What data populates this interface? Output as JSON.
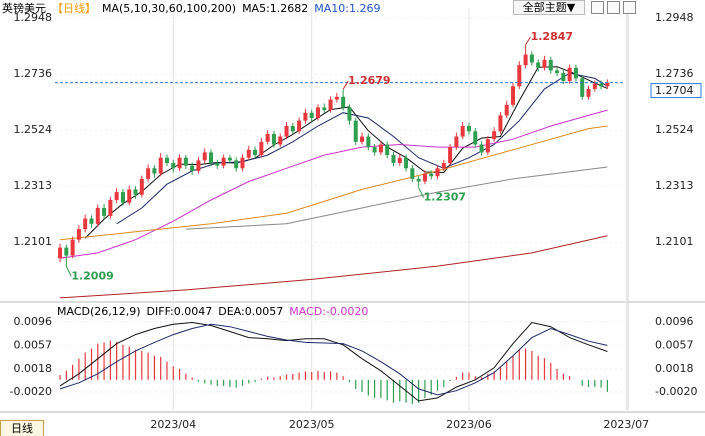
{
  "header": {
    "symbol": "英镑美元",
    "period": "【日线】",
    "ma_params": "MA(5,10,30,60,100,200)",
    "ma5": "MA5:1.2682",
    "ma10": "MA10:1.269",
    "theme": "全部主题▼"
  },
  "macd_header": {
    "params": "MACD(26,12,9)",
    "diff": "DIFF:0.0047",
    "dea": "DEA:0.0057",
    "macd": "MACD:-0.0020"
  },
  "footer": {
    "period_button": "日线"
  },
  "chart_data": [
    {
      "type": "candlestick",
      "xlim": [
        -0.8,
        89.8
      ],
      "xticks": [
        {
          "value": 18,
          "label": "2023/04"
        },
        {
          "value": 40,
          "label": "2023/05"
        },
        {
          "value": 65,
          "label": "2023/06"
        },
        {
          "value": 90,
          "label": "2023/07"
        }
      ],
      "ylim": [
        1.1882,
        1.2986
      ],
      "yticks": [
        1.2948,
        1.2736,
        1.2524,
        1.2313,
        1.2101
      ],
      "up_color": "#e8383d",
      "down_color": "#2e9e4f",
      "open": [
        1.204,
        1.208,
        1.205,
        1.211,
        1.215,
        1.219,
        1.217,
        1.223,
        1.22,
        1.226,
        1.229,
        1.225,
        1.23,
        1.228,
        1.234,
        1.238,
        1.236,
        1.242,
        1.24,
        1.238,
        1.242,
        1.239,
        1.237,
        1.241,
        1.244,
        1.24,
        1.239,
        1.242,
        1.241,
        1.238,
        1.242,
        1.245,
        1.243,
        1.248,
        1.251,
        1.247,
        1.25,
        1.254,
        1.252,
        1.256,
        1.259,
        1.257,
        1.261,
        1.26,
        1.264,
        1.265,
        1.261,
        1.256,
        1.248,
        1.25,
        1.246,
        1.244,
        1.247,
        1.243,
        1.24,
        1.242,
        1.238,
        1.234,
        1.233,
        1.236,
        1.235,
        1.238,
        1.24,
        1.246,
        1.25,
        1.254,
        1.252,
        1.247,
        1.244,
        1.249,
        1.252,
        1.258,
        1.262,
        1.269,
        1.277,
        1.281,
        1.278,
        1.276,
        1.279,
        1.275,
        1.274,
        1.271,
        1.276,
        1.272,
        1.265,
        1.268,
        1.27,
        1.269
      ],
      "high": [
        1.2095,
        1.2092,
        1.2122,
        1.2165,
        1.2205,
        1.2202,
        1.2243,
        1.2245,
        1.2272,
        1.2305,
        1.2302,
        1.2315,
        1.2312,
        1.2352,
        1.2395,
        1.2392,
        1.2438,
        1.2432,
        1.2412,
        1.2433,
        1.243,
        1.2402,
        1.2422,
        1.2455,
        1.2452,
        1.2412,
        1.2432,
        1.243,
        1.2422,
        1.2433,
        1.2465,
        1.2462,
        1.2495,
        1.2525,
        1.2522,
        1.2512,
        1.2555,
        1.2552,
        1.2572,
        1.2605,
        1.2602,
        1.2622,
        1.2625,
        1.2652,
        1.2665,
        1.2679,
        1.2622,
        1.2572,
        1.2515,
        1.2512,
        1.2472,
        1.2482,
        1.2482,
        1.2442,
        1.2432,
        1.2432,
        1.2392,
        1.2352,
        1.2372,
        1.2372,
        1.2392,
        1.2412,
        1.2472,
        1.2515,
        1.2555,
        1.2552,
        1.2532,
        1.2482,
        1.2502,
        1.2535,
        1.2592,
        1.2635,
        1.2702,
        1.2785,
        1.2847,
        1.2822,
        1.2792,
        1.2805,
        1.2802,
        1.2762,
        1.2752,
        1.2772,
        1.2772,
        1.2732,
        1.2692,
        1.2712,
        1.2712,
        1.2716
      ],
      "low": [
        1.2025,
        1.2009,
        1.204,
        1.2098,
        1.2138,
        1.2155,
        1.216,
        1.2188,
        1.219,
        1.2248,
        1.2238,
        1.224,
        1.2265,
        1.227,
        1.2328,
        1.2345,
        1.235,
        1.2388,
        1.2365,
        1.237,
        1.2378,
        1.2355,
        1.236,
        1.2398,
        1.2388,
        1.2378,
        1.238,
        1.2398,
        1.2368,
        1.237,
        1.241,
        1.2418,
        1.242,
        1.247,
        1.2458,
        1.246,
        1.249,
        1.2508,
        1.251,
        1.2548,
        1.2558,
        1.256,
        1.2588,
        1.259,
        1.2628,
        1.2598,
        1.2545,
        1.2468,
        1.247,
        1.2448,
        1.2428,
        1.243,
        1.2418,
        1.2388,
        1.239,
        1.2368,
        1.2328,
        1.2307,
        1.232,
        1.2338,
        1.234,
        1.237,
        1.239,
        1.245,
        1.249,
        1.2508,
        1.2458,
        1.2428,
        1.243,
        1.248,
        1.251,
        1.257,
        1.261,
        1.268,
        1.2758,
        1.2768,
        1.2745,
        1.275,
        1.2738,
        1.2728,
        1.2698,
        1.27,
        1.2708,
        1.2638,
        1.264,
        1.267,
        1.2678,
        1.268
      ],
      "close": [
        1.208,
        1.205,
        1.211,
        1.215,
        1.219,
        1.217,
        1.223,
        1.22,
        1.226,
        1.229,
        1.225,
        1.23,
        1.228,
        1.234,
        1.238,
        1.236,
        1.242,
        1.24,
        1.238,
        1.242,
        1.239,
        1.237,
        1.241,
        1.244,
        1.24,
        1.239,
        1.242,
        1.241,
        1.238,
        1.242,
        1.245,
        1.243,
        1.248,
        1.251,
        1.247,
        1.25,
        1.254,
        1.252,
        1.256,
        1.259,
        1.257,
        1.261,
        1.26,
        1.264,
        1.265,
        1.261,
        1.256,
        1.248,
        1.25,
        1.246,
        1.244,
        1.247,
        1.243,
        1.24,
        1.242,
        1.238,
        1.234,
        1.233,
        1.236,
        1.235,
        1.238,
        1.24,
        1.246,
        1.25,
        1.254,
        1.252,
        1.247,
        1.244,
        1.249,
        1.252,
        1.258,
        1.262,
        1.269,
        1.277,
        1.281,
        1.278,
        1.276,
        1.279,
        1.275,
        1.274,
        1.271,
        1.276,
        1.272,
        1.265,
        1.268,
        1.27,
        1.269,
        1.2704
      ],
      "lines": [
        {
          "color": "#111111",
          "x": [
            4,
            7,
            10,
            13,
            16,
            19,
            22,
            25,
            28,
            31,
            34,
            37,
            40,
            43,
            46,
            49,
            52,
            55,
            58,
            61,
            64,
            67,
            70,
            73,
            76,
            79,
            82,
            85,
            87
          ],
          "values": [
            1.2116,
            1.2188,
            1.2246,
            1.2292,
            1.2356,
            1.2396,
            1.2394,
            1.2402,
            1.24,
            1.2418,
            1.2468,
            1.2508,
            1.2556,
            1.2602,
            1.2612,
            1.2522,
            1.246,
            1.242,
            1.2366,
            1.2364,
            1.2456,
            1.2494,
            1.25,
            1.2636,
            1.2762,
            1.2764,
            1.2736,
            1.2702,
            1.2682
          ]
        },
        {
          "color": "#1f2a6b",
          "x": [
            9,
            13,
            17,
            21,
            25,
            29,
            33,
            37,
            41,
            45,
            49,
            53,
            57,
            61,
            65,
            69,
            73,
            77,
            81,
            85,
            87
          ],
          "values": [
            1.217,
            1.223,
            1.232,
            1.237,
            1.24,
            1.2405,
            1.243,
            1.248,
            1.254,
            1.259,
            1.257,
            1.25,
            1.242,
            1.238,
            1.242,
            1.247,
            1.256,
            1.268,
            1.274,
            1.272,
            1.269
          ]
        },
        {
          "color": "#cc33cc",
          "x": [
            0,
            6,
            12,
            18,
            24,
            30,
            36,
            42,
            48,
            54,
            60,
            66,
            72,
            78,
            84,
            87
          ],
          "values": [
            1.204,
            1.206,
            1.211,
            1.218,
            1.226,
            1.233,
            1.238,
            1.243,
            1.246,
            1.247,
            1.246,
            1.246,
            1.249,
            1.254,
            1.258,
            1.26
          ]
        },
        {
          "color": "#e08a1e",
          "x": [
            0,
            12,
            24,
            36,
            48,
            60,
            72,
            84,
            87
          ],
          "values": [
            1.211,
            1.214,
            1.217,
            1.221,
            1.23,
            1.237,
            1.245,
            1.253,
            1.254
          ]
        },
        {
          "color": "#888888",
          "x": [
            20,
            36,
            48,
            60,
            72,
            87
          ],
          "values": [
            1.215,
            1.217,
            1.223,
            1.229,
            1.234,
            1.2385
          ]
        },
        {
          "color": "#b22222",
          "x": [
            0,
            20,
            40,
            60,
            75,
            87
          ],
          "values": [
            1.189,
            1.192,
            1.196,
            1.201,
            1.206,
            1.2125
          ]
        }
      ],
      "last_price": 1.2704,
      "last_price_color": "#2a7de1",
      "annotations": [
        {
          "label": "1.2847",
          "x": 74,
          "y": 1.2847,
          "color": "#d03030"
        },
        {
          "label": "1.2679",
          "x": 45,
          "y": 1.2679,
          "color": "#d03030"
        },
        {
          "label": "1.2307",
          "x": 57,
          "y": 1.2307,
          "color": "#2e9e4f"
        },
        {
          "label": "1.2009",
          "x": 1,
          "y": 1.2009,
          "color": "#2e9e4f"
        }
      ]
    },
    {
      "type": "macd",
      "ylim": [
        -0.005,
        0.0119
      ],
      "yticks": [
        0.0096,
        0.0057,
        0.0018,
        {
          "value": -0.002,
          "label": "-0.0020"
        }
      ],
      "up_color": "#e8383d",
      "down_color": "#2e9e4f",
      "histogram": [
        0.0008,
        0.0015,
        0.0025,
        0.0035,
        0.0045,
        0.0052,
        0.006,
        0.0062,
        0.0065,
        0.0063,
        0.0058,
        0.0055,
        0.005,
        0.0048,
        0.0045,
        0.004,
        0.0038,
        0.003,
        0.0022,
        0.0018,
        0.001,
        0.0004,
        -0.0003,
        -0.0006,
        -0.0008,
        -0.001,
        -0.001,
        -0.0012,
        -0.0013,
        -0.001,
        -0.0006,
        -0.0004,
        0.0002,
        0.0005,
        0.0004,
        0.0006,
        0.0009,
        0.001,
        0.0012,
        0.0014,
        0.0013,
        0.0015,
        0.0013,
        0.0014,
        0.0012,
        0.0006,
        -0.0004,
        -0.0015,
        -0.002,
        -0.0026,
        -0.003,
        -0.003,
        -0.0034,
        -0.0038,
        -0.0036,
        -0.0038,
        -0.004,
        -0.0038,
        -0.003,
        -0.0025,
        -0.0018,
        -0.0012,
        -0.0002,
        0.0005,
        0.0012,
        0.0012,
        0.0006,
        0.0004,
        0.001,
        0.0014,
        0.0022,
        0.003,
        0.004,
        0.005,
        0.0052,
        0.0048,
        0.004,
        0.0036,
        0.0028,
        0.0018,
        0.001,
        0.0006,
        0.0,
        -0.001,
        -0.0012,
        -0.0012,
        -0.0013,
        -0.002
      ],
      "lines": [
        {
          "color": "#111111",
          "x": [
            0,
            3,
            6,
            9,
            12,
            15,
            18,
            21,
            24,
            27,
            30,
            33,
            36,
            39,
            42,
            45,
            48,
            51,
            54,
            57,
            60,
            63,
            66,
            69,
            72,
            75,
            78,
            81,
            84,
            87
          ],
          "values": [
            -0.001,
            0.001,
            0.0035,
            0.006,
            0.0075,
            0.0085,
            0.0092,
            0.0095,
            0.009,
            0.008,
            0.007,
            0.0068,
            0.0065,
            0.0068,
            0.0068,
            0.0058,
            0.0035,
            0.0015,
            -0.001,
            -0.0035,
            -0.003,
            -0.0012,
            0.0,
            0.002,
            0.006,
            0.0095,
            0.0088,
            0.007,
            0.0058,
            0.0047
          ]
        },
        {
          "color": "#1f2a6b",
          "x": [
            0,
            3,
            6,
            9,
            12,
            15,
            18,
            21,
            24,
            27,
            30,
            33,
            36,
            39,
            42,
            45,
            48,
            51,
            54,
            57,
            60,
            63,
            66,
            69,
            72,
            75,
            78,
            81,
            84,
            87
          ],
          "values": [
            -0.0015,
            -0.0005,
            0.001,
            0.003,
            0.0048,
            0.0062,
            0.0075,
            0.0085,
            0.0092,
            0.0088,
            0.008,
            0.0072,
            0.0066,
            0.0062,
            0.0061,
            0.006,
            0.0048,
            0.003,
            0.001,
            -0.0015,
            -0.0025,
            -0.0018,
            -0.0005,
            0.0012,
            0.004,
            0.007,
            0.0085,
            0.0075,
            0.0064,
            0.0057
          ]
        }
      ]
    }
  ]
}
